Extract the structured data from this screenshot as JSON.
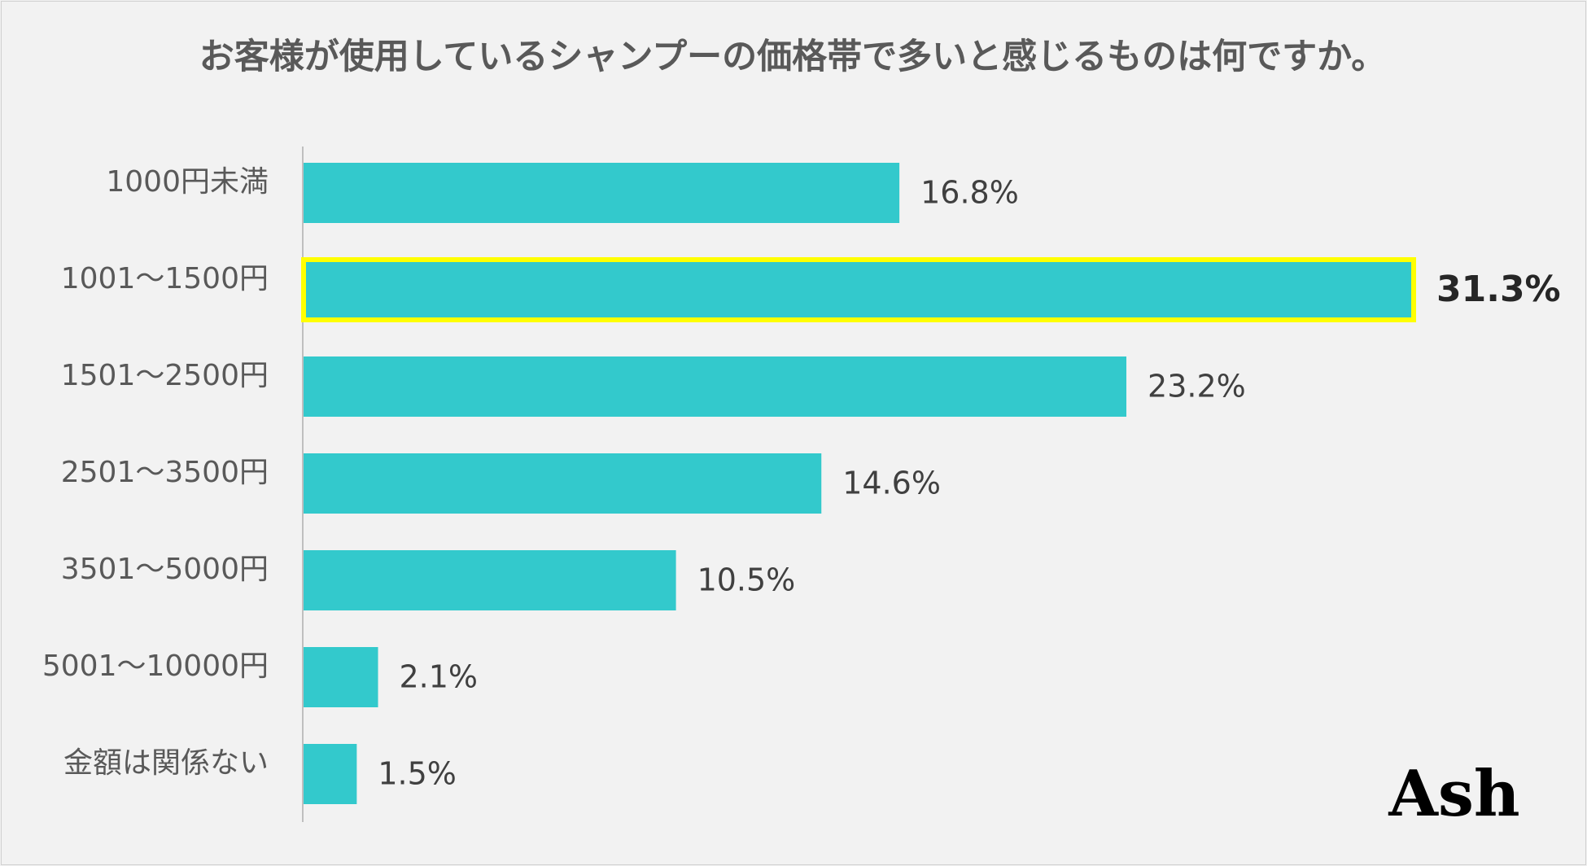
{
  "chart_data": {
    "type": "bar",
    "orientation": "horizontal",
    "title": "お客様が使用しているシャンプーの価格帯で多いと感じるものは何ですか。",
    "categories": [
      "1000円未満",
      "1001～1500円",
      "1501～2500円",
      "2501～3500円",
      "3501～5000円",
      "5001～10000円",
      "金額は関係ない"
    ],
    "values": [
      16.8,
      31.3,
      23.2,
      14.6,
      10.5,
      2.1,
      1.5
    ],
    "value_labels": [
      "16.8%",
      "31.3%",
      "23.2%",
      "14.6%",
      "10.5%",
      "2.1%",
      "1.5%"
    ],
    "highlight_index": 1,
    "xlim": [
      0,
      31.3
    ],
    "xlabel": "",
    "ylabel": "",
    "grid": false,
    "legend": "none"
  },
  "colors": {
    "bar": "#33c9cc",
    "highlight_border": "#ffff00",
    "axis": "#bfbfbf",
    "background": "#f2f2f2"
  },
  "watermark": "Ash"
}
